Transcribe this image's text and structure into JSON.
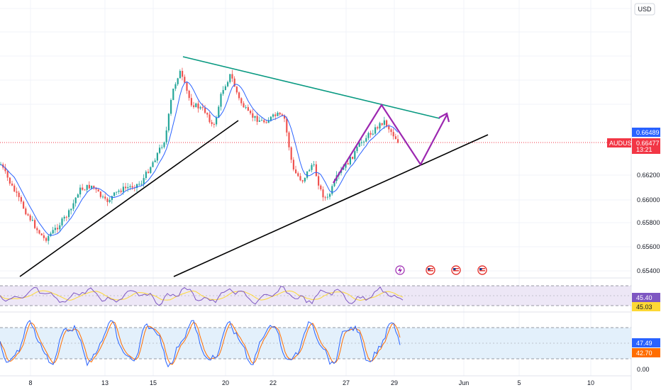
{
  "currency_button": "USD",
  "symbol": "AUDUSD",
  "prices": {
    "quote_price": "0.66489",
    "current_price": "0.66477",
    "countdown": "13:21",
    "levels": [
      "0.66200",
      "0.66000",
      "0.65800",
      "0.65600",
      "0.65400"
    ]
  },
  "indicators": {
    "rsi": {
      "value": "45.40",
      "ma_value": "45.03"
    },
    "stoch": {
      "k_value": "47.49",
      "d_value": "42.70",
      "zero_label": "0.00"
    }
  },
  "time_axis": [
    "8",
    "13",
    "15",
    "20",
    "22",
    "27",
    "29",
    "Jun",
    "5",
    "10"
  ],
  "event_icons": [
    "flash-event-icon",
    "us-flag-icon",
    "us-flag-icon",
    "us-flag-icon"
  ],
  "colors": {
    "up": "#26a69a",
    "down": "#ef5350",
    "ma": "#2962ff",
    "resistance": "#089981",
    "support": "#000000",
    "projection": "#9c27b0",
    "symbol_tag": "#f23645",
    "quote_tag": "#2962ff",
    "rsi_line": "#7e57c2",
    "rsi_ma": "#fdd835",
    "stoch_k": "#2962ff",
    "stoch_d": "#ff6d00"
  }
}
